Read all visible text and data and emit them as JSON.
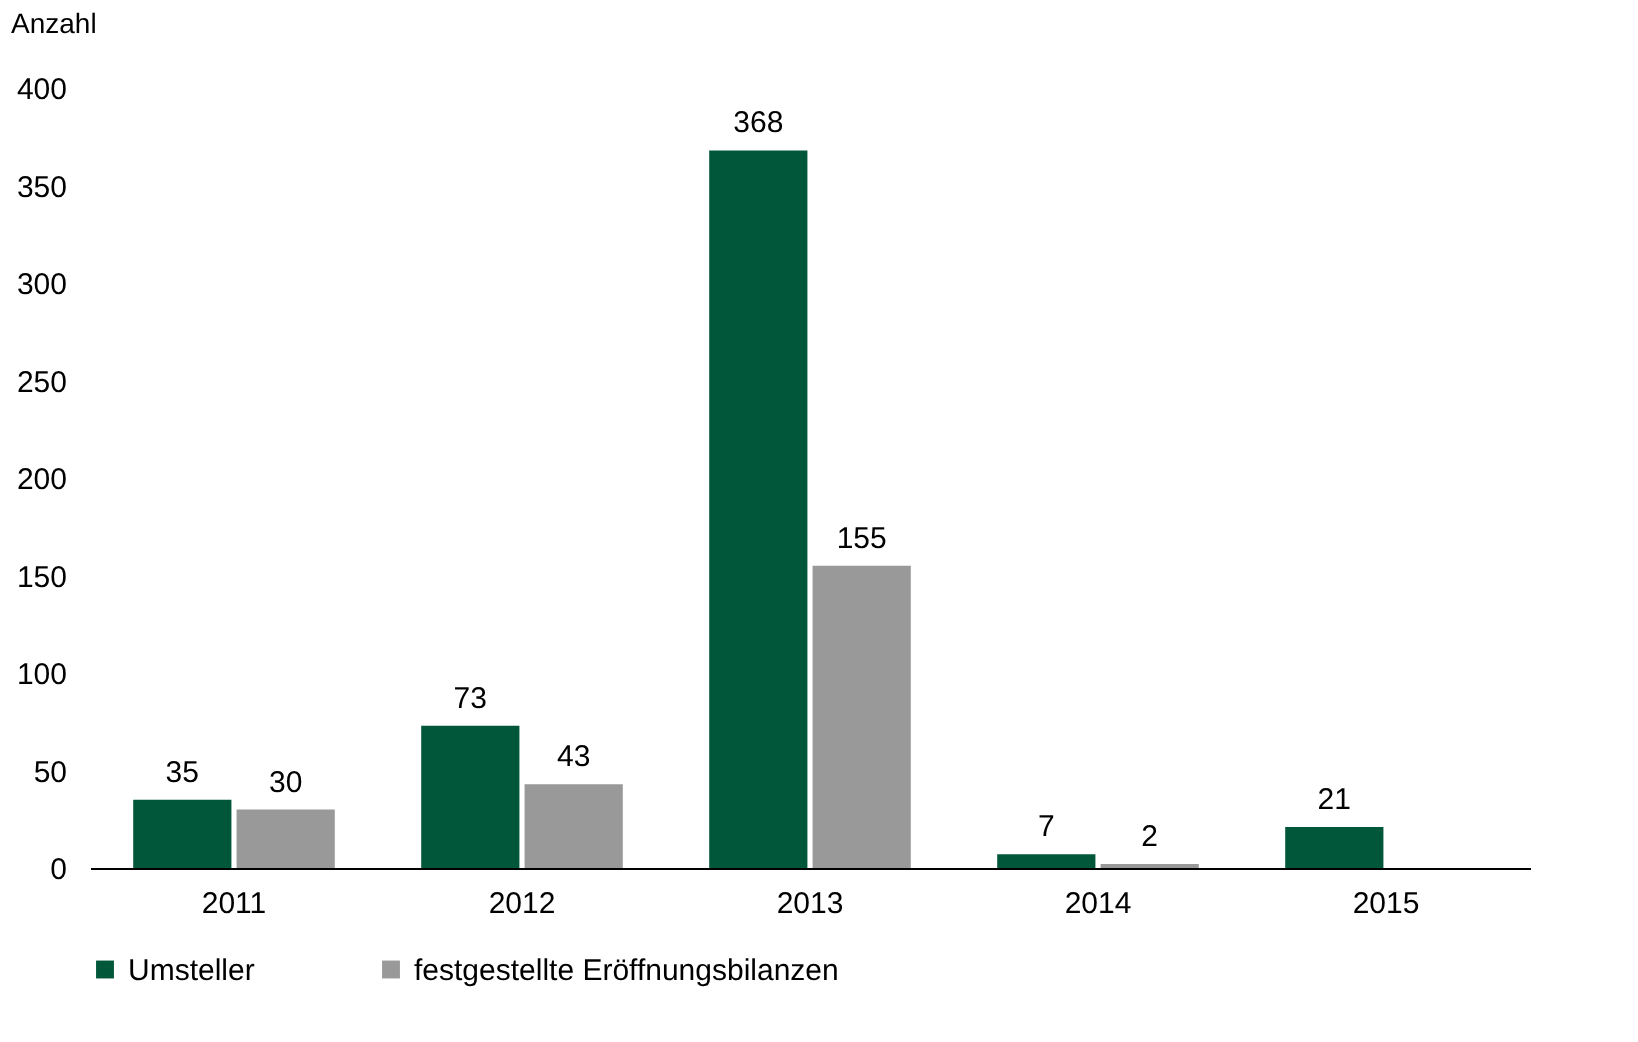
{
  "chart_data": {
    "type": "bar",
    "ylabel": "Anzahl",
    "categories": [
      "2011",
      "2012",
      "2013",
      "2014",
      "2015"
    ],
    "series": [
      {
        "name": "Umsteller",
        "color": "#00573a",
        "values": [
          35,
          73,
          368,
          7,
          21
        ]
      },
      {
        "name": "festgestellte Eröffnungsbilanzen",
        "color": "#999999",
        "values": [
          30,
          43,
          155,
          2,
          null
        ]
      }
    ],
    "ylim": [
      0,
      400
    ],
    "yticks": [
      0,
      50,
      100,
      150,
      200,
      250,
      300,
      350,
      400
    ],
    "grid": false,
    "legend": "bottom",
    "data_labels": true
  }
}
